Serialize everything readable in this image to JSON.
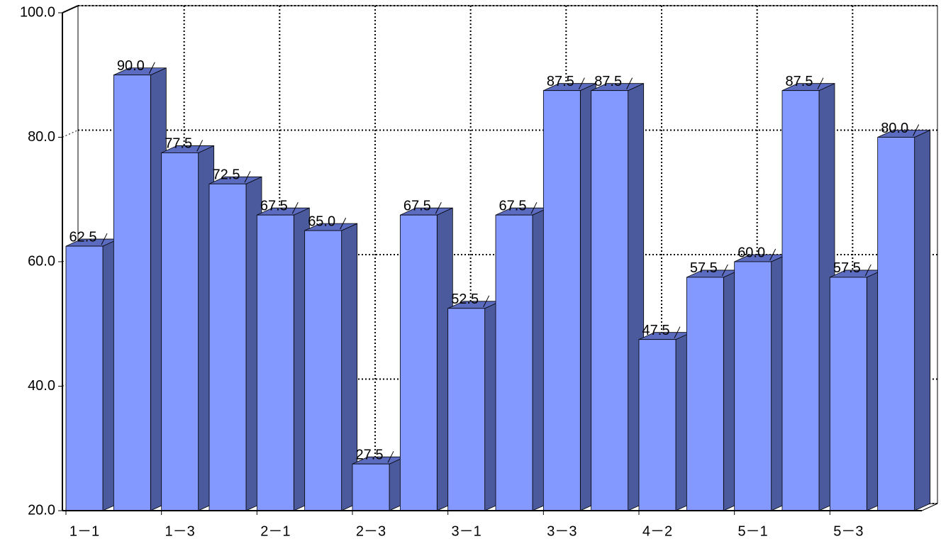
{
  "chart_data": {
    "type": "bar3d",
    "categories": [
      "1－1",
      null,
      "1－3",
      null,
      "2－1",
      null,
      "2－3",
      null,
      "3－1",
      null,
      "3－3",
      null,
      "4－2",
      null,
      "5－1",
      null,
      "5－3",
      null
    ],
    "values": [
      62.5,
      90.0,
      77.5,
      72.5,
      67.5,
      65.0,
      27.5,
      67.5,
      52.5,
      67.5,
      87.5,
      87.5,
      47.5,
      57.5,
      60.0,
      87.5,
      57.5,
      80.0
    ],
    "value_labels": [
      "62.5",
      "90.0",
      "77.5",
      "72.5",
      "67.5",
      "65.0",
      "27.5",
      "67.5",
      "52.5",
      "67.5",
      "87.5",
      "87.5",
      "47.5",
      "57.5",
      "60.0",
      "87.5",
      "57.5",
      "80.0"
    ],
    "color": "#8499ff",
    "top_color": "#5b6bbf",
    "side_color": "#4b5a9c",
    "ylim": [
      20,
      100
    ],
    "yticks": [
      {
        "value": 20,
        "label": "20.0"
      },
      {
        "value": 40,
        "label": "40.0"
      },
      {
        "value": 60,
        "label": "60.0"
      },
      {
        "value": 80,
        "label": "80.0"
      },
      {
        "value": 100,
        "label": "100.0"
      }
    ],
    "grid": true
  }
}
